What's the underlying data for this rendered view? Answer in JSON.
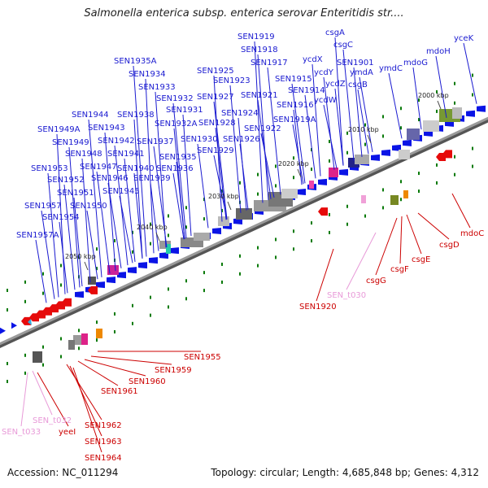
{
  "title": "Salmonella enterica subsp. enterica serovar Enteritidis str....",
  "footer": {
    "accession": "Accession: NC_011294",
    "summary": "Topology: circular; Length: 4,685,848 bp; Genes: 4,312"
  },
  "colors": {
    "backbone": "#8c8c8c",
    "forward_gene": "#0a14e6",
    "reverse_gene": "#e60a0a",
    "rna_gene": "#e666c4",
    "misc_gene": "#666666",
    "tick_dot": "#0a7a0a",
    "forward_label": "#1a1ad0",
    "reverse_label": "#cc0000",
    "rna_label": "#e89ad8"
  },
  "ticks": [
    "2000 kbp",
    "2010 kbp",
    "2020 kbp",
    "2030 kbp",
    "2040 kbp",
    "2050 kbp"
  ],
  "forward_labels": [
    "csgA",
    "csgC",
    "yceK",
    "SEN1901",
    "mdoH",
    "ymdA",
    "mdoG",
    "csgB",
    "ymdC",
    "SEN1919",
    "SEN1918",
    "SEN1917",
    "ycdX",
    "ycdY",
    "SEN1915",
    "ycdZ",
    "SEN1914",
    "ycdW",
    "SEN1916",
    "SEN1919A",
    "SEN1921",
    "SEN1925",
    "SEN1923",
    "SEN1935A",
    "SEN1934",
    "SEN1933",
    "SEN1932",
    "SEN1931",
    "SEN1932A",
    "SEN1927",
    "SEN1924",
    "SEN1928",
    "SEN1922",
    "SEN1926",
    "SEN1930",
    "SEN1929",
    "SEN1935",
    "SEN1936",
    "SEN1944",
    "SEN1938",
    "SEN1943",
    "SEN1937",
    "SEN1949A",
    "SEN1949",
    "SEN1942",
    "SEN1948",
    "SEN1941",
    "SEN1947",
    "SEN1940",
    "SEN1953",
    "SEN1946",
    "SEN1939",
    "SEN1952",
    "SEN1945",
    "SEN1951",
    "SEN1950",
    "SEN1957",
    "SEN1954",
    "SEN1957A"
  ],
  "reverse_labels": [
    "mdoC",
    "csgD",
    "csgE",
    "csgF",
    "csgG",
    "SEN1920",
    "SEN1955",
    "SEN1959",
    "SEN1960",
    "SEN1961",
    "yeeI",
    "SEN1962",
    "SEN1963",
    "SEN1964"
  ],
  "rna_labels": [
    "SEN_t030",
    "SEN_t032",
    "SEN_t033"
  ]
}
